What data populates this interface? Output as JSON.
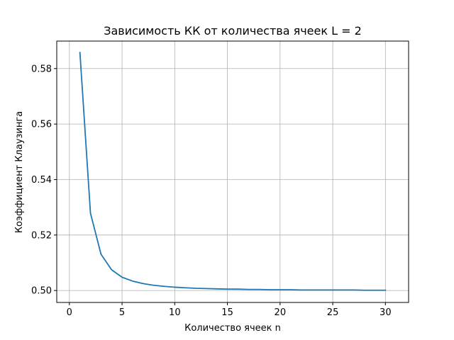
{
  "chart_data": {
    "type": "line",
    "title": "Зависимость КК от количества ячеек L = 2",
    "xlabel": "Количество ячеек n",
    "ylabel": "Коэффициент Клаузинга",
    "xlim": [
      -1.2,
      32.2
    ],
    "ylim": [
      0.4957,
      0.5899
    ],
    "xticks": [
      0,
      5,
      10,
      15,
      20,
      25,
      30
    ],
    "xtick_labels": [
      "0",
      "5",
      "10",
      "15",
      "20",
      "25",
      "30"
    ],
    "yticks": [
      0.5,
      0.52,
      0.54,
      0.56,
      0.58
    ],
    "ytick_labels": [
      "0.50",
      "0.52",
      "0.54",
      "0.56",
      "0.58"
    ],
    "grid": true,
    "line_color": "#1f77b4",
    "series": [
      {
        "x": [
          1,
          2,
          3,
          4,
          5,
          6,
          7,
          8,
          9,
          10,
          11,
          12,
          13,
          14,
          15,
          16,
          17,
          18,
          19,
          20,
          21,
          22,
          23,
          24,
          25,
          26,
          27,
          28,
          29,
          30
        ],
        "values": [
          0.5858,
          0.5279,
          0.5131,
          0.5075,
          0.5048,
          0.5034,
          0.5025,
          0.5019,
          0.5015,
          0.5012,
          0.501,
          0.5008,
          0.5007,
          0.5006,
          0.5005,
          0.5005,
          0.5004,
          0.5004,
          0.5003,
          0.5003,
          0.5003,
          0.5002,
          0.5002,
          0.5002,
          0.5002,
          0.5002,
          0.5002,
          0.5001,
          0.5001,
          0.5001
        ]
      }
    ]
  }
}
